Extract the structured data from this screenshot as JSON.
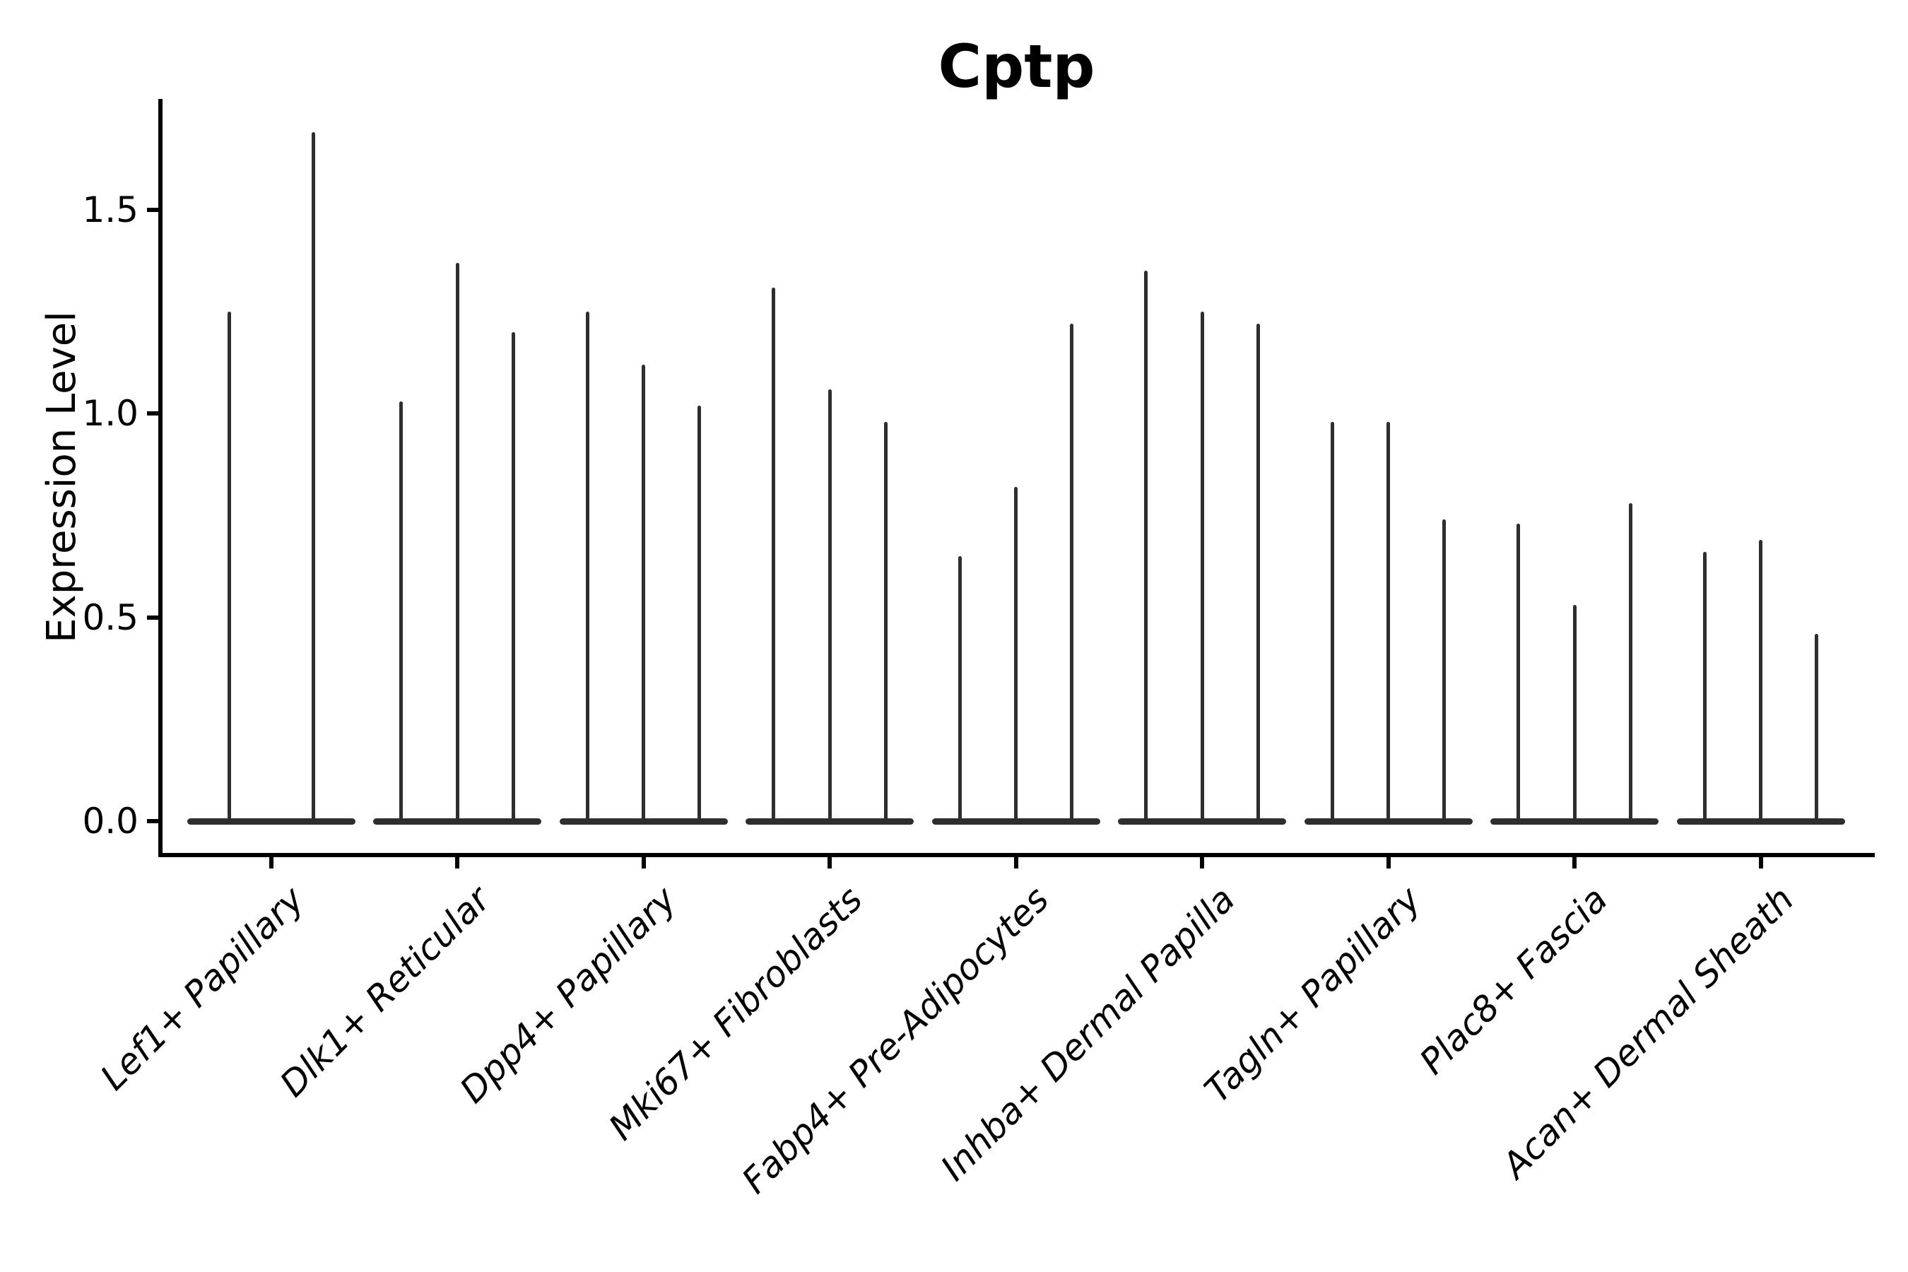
{
  "title": "Cptp",
  "y_axis": {
    "label": "Expression Level",
    "tick_labels": [
      "0.0",
      "0.5",
      "1.0",
      "1.5"
    ]
  },
  "colors": {
    "violin": "#2e2e2e",
    "axis": "#000000",
    "text": "#000000",
    "background": "#ffffff"
  },
  "chart_data": {
    "type": "violin",
    "title": "Cptp",
    "xlabel": "",
    "ylabel": "Expression Level",
    "yticks": [
      0,
      0.5,
      1.0,
      1.5
    ],
    "ylim": [
      -0.08,
      1.77
    ],
    "grid": false,
    "legend": "none",
    "orientation": "vertical",
    "shape_note": "Each violin is a spike: dense mass at expression 0 forming a wide flat base on the zero line, with a very thin tail rising to the group's maximum expression value.",
    "categories": [
      "Lef1+ Papillary",
      "Dlk1+ Reticular",
      "Dpp4+ Papillary",
      "Mki67+ Fibroblasts",
      "Fabp4+ Pre-Adipocytes",
      "Inhba+ Dermal Papilla",
      "Tagln+ Papillary",
      "Plac8+ Fascia",
      "Acan+ Dermal Sheath"
    ],
    "groups": [
      {
        "label": "Lef1+ Papillary",
        "violin_spike_maxima": [
          1.25,
          1.69
        ]
      },
      {
        "label": "Dlk1+ Reticular",
        "violin_spike_maxima": [
          1.03,
          1.37,
          1.2
        ]
      },
      {
        "label": "Dpp4+ Papillary",
        "violin_spike_maxima": [
          1.25,
          1.12,
          1.02
        ]
      },
      {
        "label": "Mki67+ Fibroblasts",
        "violin_spike_maxima": [
          1.31,
          1.06,
          0.98
        ]
      },
      {
        "label": "Fabp4+ Pre-Adipocytes",
        "violin_spike_maxima": [
          0.65,
          0.82,
          1.22
        ]
      },
      {
        "label": "Inhba+ Dermal Papilla",
        "violin_spike_maxima": [
          1.35,
          1.25,
          1.22
        ]
      },
      {
        "label": "Tagln+ Papillary",
        "violin_spike_maxima": [
          0.98,
          0.98,
          0.74
        ]
      },
      {
        "label": "Plac8+ Fascia",
        "violin_spike_maxima": [
          0.73,
          0.53,
          0.78
        ]
      },
      {
        "label": "Acan+ Dermal Sheath",
        "violin_spike_maxima": [
          0.66,
          0.69,
          0.46
        ]
      }
    ]
  }
}
